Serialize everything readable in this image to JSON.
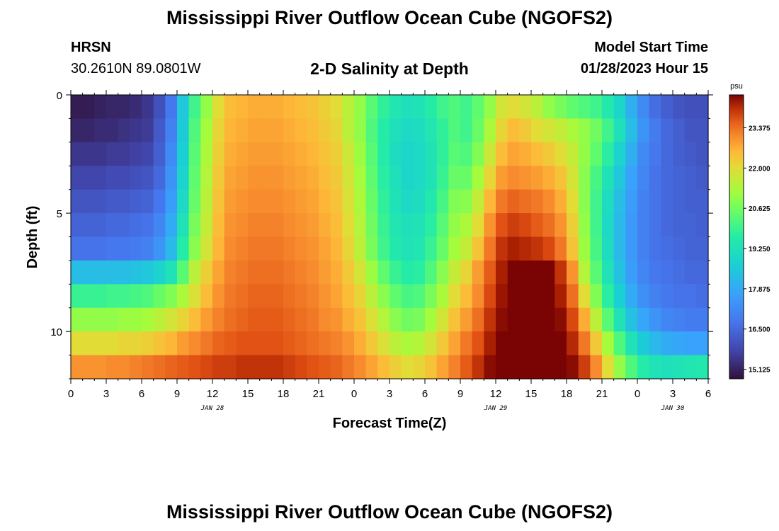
{
  "page": {
    "title": "Mississippi River Outflow Ocean Cube (NGOFS2)",
    "station": "HRSN",
    "coords": "30.2610N  89.0801W",
    "subtitle": "2-D Salinity at Depth",
    "model_start_label": "Model Start Time",
    "model_start_value": "01/28/2023 Hour 15",
    "bottom_title": "Mississippi River Outflow Ocean Cube (NGOFS2)"
  },
  "chart_data": {
    "type": "heatmap",
    "title": "2-D Salinity at Depth",
    "xlabel": "Forecast Time(Z)",
    "ylabel": "Depth (ft)",
    "x_range": [
      0,
      54
    ],
    "y_range": [
      0,
      12
    ],
    "x_ticks": [
      {
        "x": 0,
        "label": "0"
      },
      {
        "x": 3,
        "label": "3"
      },
      {
        "x": 6,
        "label": "6"
      },
      {
        "x": 9,
        "label": "9"
      },
      {
        "x": 12,
        "label": "12"
      },
      {
        "x": 15,
        "label": "15"
      },
      {
        "x": 18,
        "label": "18"
      },
      {
        "x": 21,
        "label": "21"
      },
      {
        "x": 24,
        "label": "0"
      },
      {
        "x": 27,
        "label": "3"
      },
      {
        "x": 30,
        "label": "6"
      },
      {
        "x": 33,
        "label": "9"
      },
      {
        "x": 36,
        "label": "12"
      },
      {
        "x": 39,
        "label": "15"
      },
      {
        "x": 42,
        "label": "18"
      },
      {
        "x": 45,
        "label": "21"
      },
      {
        "x": 48,
        "label": "0"
      },
      {
        "x": 51,
        "label": "3"
      },
      {
        "x": 54,
        "label": "6"
      }
    ],
    "date_labels": [
      {
        "x": 12,
        "label": "JAN 28"
      },
      {
        "x": 36,
        "label": "JAN 29"
      },
      {
        "x": 51,
        "label": "JAN 30"
      }
    ],
    "y_ticks": [
      {
        "y": 0,
        "label": "0"
      },
      {
        "y": 5,
        "label": "5"
      },
      {
        "y": 10,
        "label": "10"
      }
    ],
    "colorbar": {
      "unit": "psu",
      "min": 14.8,
      "max": 24.5,
      "ticks": [
        "15.125",
        "16.500",
        "17.875",
        "19.250",
        "20.625",
        "22.000",
        "23.375"
      ]
    },
    "depth_levels_ft": [
      0.5,
      1.5,
      2.5,
      3.5,
      4.5,
      5.5,
      6.5,
      7.5,
      8.5,
      9.5,
      10.5,
      11.5
    ],
    "time_steps_h": 54,
    "salinity_psu": [
      [
        15.0,
        15.0,
        15.1,
        15.2,
        15.2,
        15.3,
        15.5,
        16.0,
        16.8,
        18.5,
        20.0,
        21.0,
        22.0,
        22.5,
        22.6,
        22.7,
        22.7,
        22.7,
        22.6,
        22.5,
        22.4,
        22.2,
        22.0,
        21.5,
        21.0,
        20.3,
        19.8,
        19.4,
        19.2,
        19.3,
        19.6,
        20.0,
        20.2,
        20.0,
        20.4,
        21.0,
        21.8,
        22.0,
        21.8,
        21.5,
        21.0,
        20.7,
        20.4,
        20.2,
        20.0,
        19.5,
        18.9,
        18.0,
        17.2,
        16.6,
        16.3,
        16.1,
        16.0,
        16.0
      ],
      [
        15.2,
        15.2,
        15.3,
        15.3,
        15.4,
        15.5,
        15.6,
        16.2,
        17.0,
        18.6,
        20.2,
        21.2,
        22.1,
        22.6,
        22.7,
        22.8,
        22.8,
        22.8,
        22.7,
        22.6,
        22.5,
        22.3,
        22.1,
        21.5,
        21.0,
        20.2,
        19.6,
        19.2,
        19.0,
        19.1,
        19.4,
        19.8,
        20.2,
        20.0,
        20.5,
        21.3,
        22.1,
        22.5,
        22.3,
        22.0,
        21.8,
        21.6,
        21.3,
        21.0,
        20.6,
        20.0,
        19.2,
        18.3,
        17.4,
        16.9,
        16.5,
        16.3,
        16.1,
        16.1
      ],
      [
        15.5,
        15.5,
        15.5,
        15.6,
        15.6,
        15.7,
        15.8,
        16.3,
        17.2,
        18.7,
        20.3,
        21.3,
        22.2,
        22.7,
        22.8,
        22.9,
        22.9,
        22.9,
        22.8,
        22.7,
        22.6,
        22.4,
        22.2,
        21.7,
        21.1,
        20.3,
        19.6,
        19.1,
        18.9,
        19.0,
        19.3,
        19.8,
        20.3,
        20.2,
        20.8,
        21.7,
        22.5,
        22.8,
        22.7,
        22.5,
        22.3,
        22.0,
        21.6,
        21.0,
        20.4,
        19.7,
        18.8,
        18.0,
        17.2,
        16.8,
        16.5,
        16.3,
        16.2,
        16.1
      ],
      [
        15.8,
        15.8,
        15.8,
        15.9,
        15.9,
        16.0,
        16.1,
        16.5,
        17.4,
        18.8,
        20.4,
        21.4,
        22.3,
        22.8,
        22.9,
        23.0,
        23.0,
        23.0,
        22.9,
        22.8,
        22.7,
        22.5,
        22.3,
        21.8,
        21.2,
        20.4,
        19.7,
        19.2,
        18.9,
        19.0,
        19.3,
        19.9,
        20.5,
        20.5,
        21.2,
        22.1,
        22.9,
        23.1,
        23.0,
        22.9,
        22.7,
        22.4,
        21.8,
        20.9,
        20.1,
        19.3,
        18.5,
        17.7,
        17.1,
        16.7,
        16.5,
        16.4,
        16.3,
        16.2
      ],
      [
        16.1,
        16.1,
        16.1,
        16.2,
        16.2,
        16.3,
        16.4,
        16.8,
        17.6,
        19.0,
        20.5,
        21.5,
        22.4,
        22.9,
        23.0,
        23.1,
        23.1,
        23.1,
        23.0,
        22.9,
        22.8,
        22.6,
        22.4,
        21.9,
        21.3,
        20.5,
        19.8,
        19.3,
        19.0,
        19.1,
        19.5,
        20.1,
        20.8,
        20.9,
        21.6,
        22.6,
        23.3,
        23.5,
        23.4,
        23.3,
        23.1,
        22.7,
        22.0,
        20.9,
        20.0,
        19.1,
        18.3,
        17.6,
        17.0,
        16.7,
        16.5,
        16.4,
        16.3,
        16.3
      ],
      [
        16.4,
        16.4,
        16.4,
        16.5,
        16.5,
        16.6,
        16.7,
        17.1,
        17.9,
        19.3,
        20.7,
        21.6,
        22.5,
        23.0,
        23.1,
        23.2,
        23.2,
        23.2,
        23.1,
        23.0,
        22.9,
        22.7,
        22.5,
        22.0,
        21.4,
        20.6,
        19.9,
        19.4,
        19.2,
        19.3,
        19.7,
        20.3,
        21.0,
        21.3,
        22.0,
        23.0,
        23.7,
        23.9,
        23.8,
        23.6,
        23.4,
        23.0,
        22.2,
        21.0,
        20.0,
        19.0,
        18.2,
        17.5,
        17.0,
        16.7,
        16.5,
        16.4,
        16.4,
        16.3
      ],
      [
        16.7,
        16.7,
        16.7,
        16.8,
        16.8,
        16.9,
        17.0,
        17.4,
        18.2,
        19.6,
        20.9,
        21.8,
        22.6,
        23.1,
        23.2,
        23.3,
        23.3,
        23.3,
        23.2,
        23.1,
        23.0,
        22.8,
        22.6,
        22.1,
        21.5,
        20.7,
        20.0,
        19.5,
        19.3,
        19.4,
        19.9,
        20.5,
        21.2,
        21.6,
        22.4,
        23.3,
        24.0,
        24.2,
        24.1,
        24.0,
        23.8,
        23.3,
        22.4,
        21.1,
        20.1,
        19.1,
        18.2,
        17.5,
        17.0,
        16.7,
        16.6,
        16.5,
        16.4,
        16.4
      ],
      [
        18.3,
        18.3,
        18.3,
        18.3,
        18.3,
        18.4,
        18.5,
        18.8,
        19.3,
        20.3,
        21.5,
        22.2,
        22.8,
        23.2,
        23.3,
        23.4,
        23.4,
        23.4,
        23.3,
        23.2,
        23.1,
        22.9,
        22.7,
        22.3,
        21.8,
        21.1,
        20.4,
        19.9,
        19.6,
        19.7,
        20.2,
        20.9,
        21.6,
        22.1,
        22.9,
        23.6,
        24.2,
        24.5,
        24.6,
        24.6,
        24.5,
        24.0,
        23.0,
        21.4,
        20.3,
        19.3,
        18.4,
        17.6,
        17.1,
        16.8,
        16.7,
        16.6,
        16.5,
        16.5
      ],
      [
        19.9,
        19.9,
        19.9,
        20.0,
        20.0,
        20.1,
        20.2,
        20.5,
        20.8,
        21.3,
        21.9,
        22.5,
        23.0,
        23.3,
        23.4,
        23.5,
        23.5,
        23.5,
        23.4,
        23.3,
        23.2,
        23.0,
        22.8,
        22.5,
        22.1,
        21.5,
        20.9,
        20.4,
        20.1,
        20.2,
        20.7,
        21.3,
        22.0,
        22.5,
        23.1,
        23.8,
        24.3,
        24.6,
        24.7,
        24.7,
        24.6,
        24.2,
        23.4,
        22.0,
        20.8,
        19.7,
        18.7,
        17.9,
        17.3,
        17.0,
        16.8,
        16.7,
        16.7,
        16.6
      ],
      [
        21.0,
        21.0,
        21.0,
        21.0,
        21.1,
        21.1,
        21.2,
        21.5,
        21.8,
        22.1,
        22.5,
        22.9,
        23.2,
        23.4,
        23.5,
        23.6,
        23.6,
        23.6,
        23.5,
        23.4,
        23.3,
        23.1,
        23.0,
        22.7,
        22.4,
        21.9,
        21.4,
        20.9,
        20.6,
        20.7,
        21.2,
        21.8,
        22.4,
        22.9,
        23.4,
        24.0,
        24.4,
        24.7,
        24.8,
        24.8,
        24.7,
        24.4,
        23.8,
        22.7,
        21.5,
        20.3,
        19.3,
        18.4,
        17.8,
        17.4,
        17.1,
        17.0,
        16.9,
        16.9
      ],
      [
        22.0,
        22.0,
        22.0,
        22.0,
        22.1,
        22.1,
        22.2,
        22.4,
        22.6,
        22.9,
        23.1,
        23.3,
        23.5,
        23.6,
        23.7,
        23.7,
        23.7,
        23.7,
        23.6,
        23.5,
        23.4,
        23.3,
        23.2,
        23.0,
        22.7,
        22.3,
        21.9,
        21.5,
        21.3,
        21.4,
        21.8,
        22.3,
        22.8,
        23.3,
        23.7,
        24.2,
        24.6,
        24.8,
        24.9,
        24.9,
        24.8,
        24.6,
        24.1,
        23.3,
        22.3,
        21.2,
        20.2,
        19.3,
        18.6,
        18.2,
        17.9,
        17.8,
        17.7,
        17.7
      ],
      [
        23.0,
        23.0,
        23.0,
        23.1,
        23.1,
        23.2,
        23.3,
        23.4,
        23.5,
        23.6,
        23.7,
        23.8,
        23.9,
        23.9,
        24.0,
        24.0,
        24.0,
        24.0,
        23.9,
        23.8,
        23.7,
        23.6,
        23.5,
        23.3,
        23.1,
        22.8,
        22.5,
        22.2,
        22.0,
        22.1,
        22.4,
        22.8,
        23.2,
        23.6,
        24.0,
        24.4,
        24.7,
        24.9,
        25.0,
        25.0,
        24.9,
        24.7,
        24.4,
        23.9,
        23.1,
        22.0,
        21.0,
        20.2,
        19.6,
        19.3,
        19.2,
        19.3,
        19.4,
        19.5
      ]
    ]
  }
}
